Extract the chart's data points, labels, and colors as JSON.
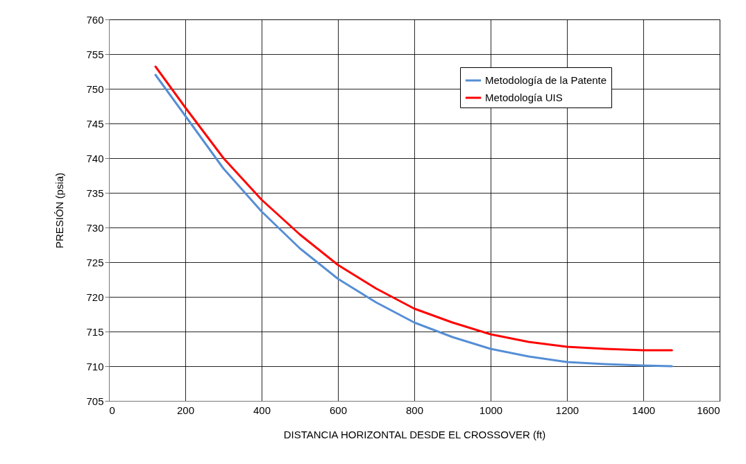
{
  "chart_data": {
    "type": "line",
    "xlabel": "DISTANCIA  HORIZONTAL DESDE EL CROSSOVER (ft)",
    "ylabel": "PRESIÓN (psia)",
    "x": [
      122,
      200,
      300,
      400,
      500,
      600,
      700,
      800,
      900,
      1000,
      1100,
      1200,
      1300,
      1400,
      1475
    ],
    "series": [
      {
        "name": "Metodología de la Patente",
        "color": "#558ed5",
        "values": [
          752,
          746.1,
          738.5,
          732.3,
          727,
          722.6,
          719.2,
          716.3,
          714.2,
          712.5,
          711.4,
          710.6,
          710.3,
          710.1,
          710
        ]
      },
      {
        "name": "Metodología UIS",
        "color": "#ff0000",
        "values": [
          753.2,
          747.3,
          740,
          734,
          729,
          724.6,
          721.2,
          718.3,
          716.3,
          714.6,
          713.5,
          712.8,
          712.5,
          712.3,
          712.3
        ]
      }
    ],
    "xlim": [
      0,
      1600
    ],
    "xticks": [
      0,
      200,
      400,
      600,
      800,
      1000,
      1200,
      1400,
      1600
    ],
    "ylim": [
      705,
      760
    ],
    "yticks": [
      705,
      710,
      715,
      720,
      725,
      730,
      735,
      740,
      745,
      750,
      755,
      760
    ],
    "grid": true,
    "legend": "top right",
    "marker": "none",
    "line_style": "solid"
  }
}
